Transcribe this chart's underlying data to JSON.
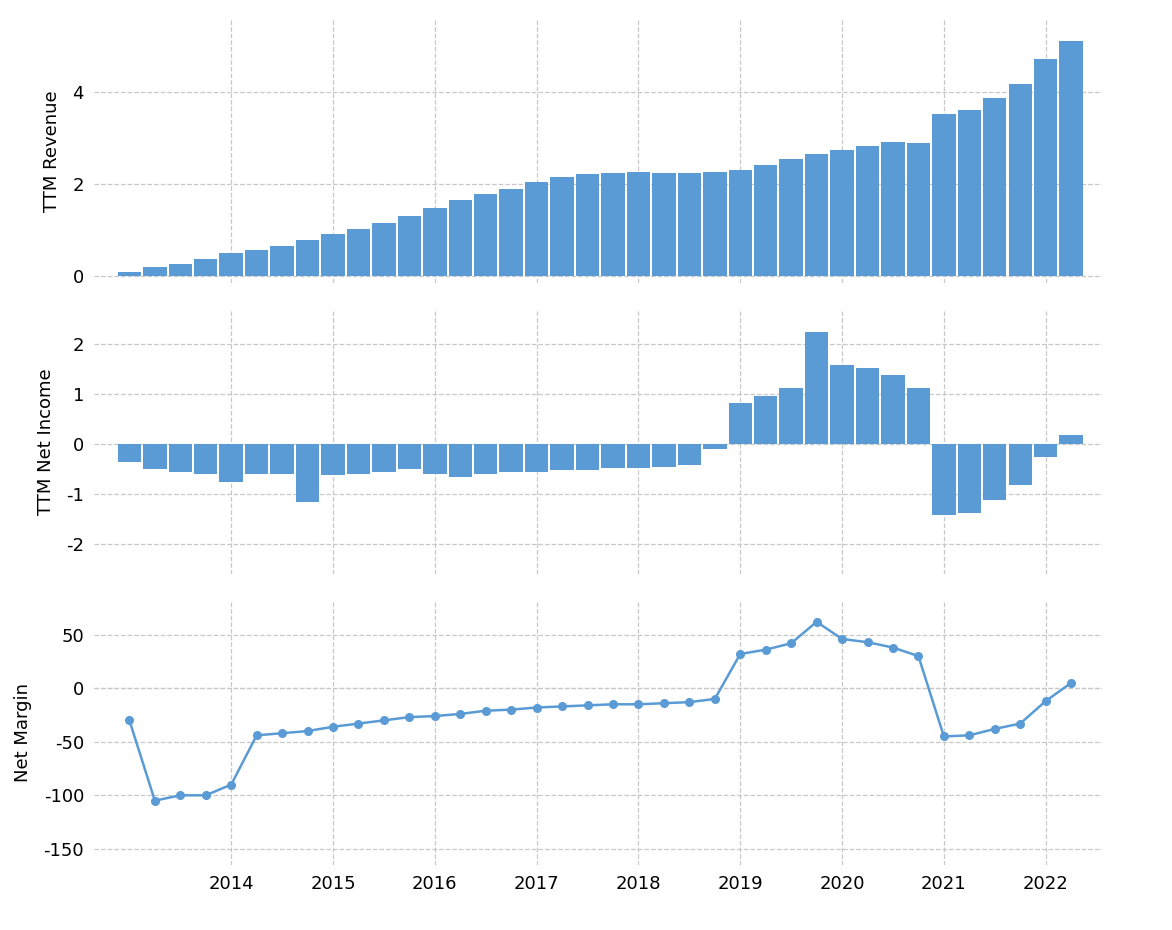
{
  "revenue_quarters": [
    2013.0,
    2013.25,
    2013.5,
    2013.75,
    2014.0,
    2014.25,
    2014.5,
    2014.75,
    2015.0,
    2015.25,
    2015.5,
    2015.75,
    2016.0,
    2016.25,
    2016.5,
    2016.75,
    2017.0,
    2017.25,
    2017.5,
    2017.75,
    2018.0,
    2018.25,
    2018.5,
    2018.75,
    2019.0,
    2019.25,
    2019.5,
    2019.75,
    2020.0,
    2020.25,
    2020.5,
    2020.75,
    2021.0,
    2021.25,
    2021.5,
    2021.75,
    2022.0,
    2022.25
  ],
  "revenue_data": [
    0.09,
    0.2,
    0.27,
    0.37,
    0.5,
    0.57,
    0.65,
    0.78,
    0.92,
    1.02,
    1.15,
    1.3,
    1.48,
    1.65,
    1.78,
    1.9,
    2.05,
    2.16,
    2.22,
    2.24,
    2.27,
    2.24,
    2.25,
    2.26,
    2.3,
    2.42,
    2.55,
    2.65,
    2.74,
    2.84,
    2.92,
    2.9,
    3.52,
    3.62,
    3.88,
    4.18,
    4.72,
    5.12
  ],
  "income_quarters": [
    2013.0,
    2013.25,
    2013.5,
    2013.75,
    2014.0,
    2014.25,
    2014.5,
    2014.75,
    2015.0,
    2015.25,
    2015.5,
    2015.75,
    2016.0,
    2016.25,
    2016.5,
    2016.75,
    2017.0,
    2017.25,
    2017.5,
    2017.75,
    2018.0,
    2018.25,
    2018.5,
    2018.75,
    2019.0,
    2019.25,
    2019.5,
    2019.75,
    2020.0,
    2020.25,
    2020.5,
    2020.75,
    2021.0,
    2021.25,
    2021.5,
    2021.75,
    2022.0,
    2022.25
  ],
  "income_data": [
    -0.35,
    -0.5,
    -0.55,
    -0.6,
    -0.75,
    -0.6,
    -0.6,
    -1.15,
    -0.62,
    -0.6,
    -0.55,
    -0.5,
    -0.6,
    -0.65,
    -0.6,
    -0.55,
    -0.55,
    -0.52,
    -0.52,
    -0.48,
    -0.48,
    -0.45,
    -0.42,
    -0.1,
    0.82,
    0.96,
    1.12,
    2.25,
    1.58,
    1.52,
    1.38,
    1.12,
    -1.42,
    -1.38,
    -1.12,
    -0.82,
    -0.25,
    0.18
  ],
  "margin_quarters": [
    2013.0,
    2013.25,
    2013.5,
    2013.75,
    2014.0,
    2014.25,
    2014.5,
    2014.75,
    2015.0,
    2015.25,
    2015.5,
    2015.75,
    2016.0,
    2016.25,
    2016.5,
    2016.75,
    2017.0,
    2017.25,
    2017.5,
    2017.75,
    2018.0,
    2018.25,
    2018.5,
    2018.75,
    2019.0,
    2019.25,
    2019.5,
    2019.75,
    2020.0,
    2020.25,
    2020.5,
    2020.75,
    2021.0,
    2021.25,
    2021.5,
    2021.75,
    2022.0,
    2022.25
  ],
  "margin_data": [
    -30,
    -105,
    -100,
    -100,
    -90,
    -44,
    -42,
    -40,
    -36,
    -33,
    -30,
    -27,
    -26,
    -24,
    -21,
    -20,
    -18,
    -17,
    -16,
    -15,
    -15,
    -14,
    -13,
    -10,
    32,
    36,
    42,
    62,
    46,
    43,
    38,
    30,
    -45,
    -44,
    -38,
    -33,
    -12,
    5
  ],
  "bar_color": "#5b9bd5",
  "line_color": "#5b9bd5",
  "background_color": "#ffffff",
  "grid_color": "#c8c8c8",
  "ylabel1": "TTM Revenue",
  "ylabel2": "TTM Net Income",
  "ylabel3": "Net Margin",
  "xtick_positions": [
    2014,
    2015,
    2016,
    2017,
    2018,
    2019,
    2020,
    2021,
    2022
  ],
  "xtick_labels": [
    "2014",
    "2015",
    "2016",
    "2017",
    "2018",
    "2019",
    "2020",
    "2021",
    "2022"
  ],
  "xlim": [
    2012.65,
    2022.55
  ],
  "rev_ylim": [
    -0.15,
    5.6
  ],
  "rev_yticks": [
    0,
    2,
    4
  ],
  "inc_ylim": [
    -2.6,
    2.7
  ],
  "inc_yticks": [
    -2,
    -1,
    0,
    1,
    2
  ],
  "mar_ylim": [
    -165,
    82
  ],
  "mar_yticks": [
    -150,
    -100,
    -50,
    0,
    50
  ]
}
